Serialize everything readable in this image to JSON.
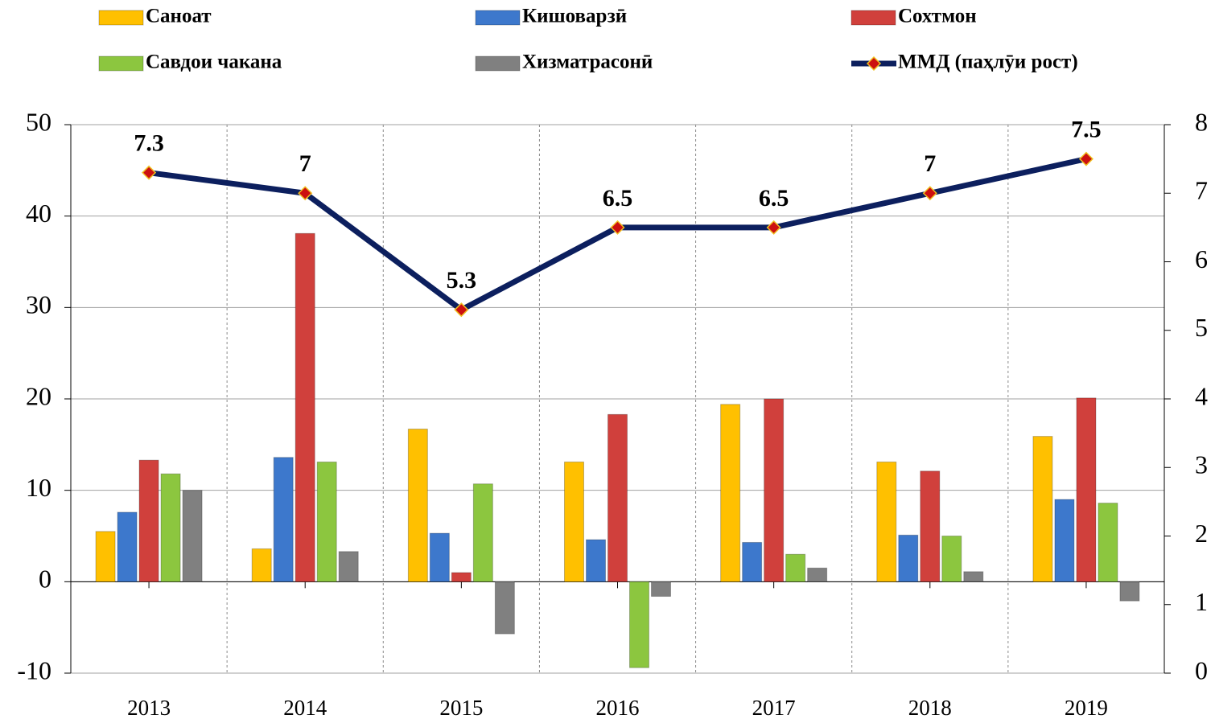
{
  "chart_data": {
    "type": "bar_line",
    "categories": [
      "2013",
      "2014",
      "2015",
      "2016",
      "2017",
      "2018",
      "2019"
    ],
    "series": [
      {
        "name": "Саноат",
        "color": "#ffc000",
        "values": [
          5.5,
          3.6,
          16.7,
          13.1,
          19.4,
          13.1,
          15.9
        ]
      },
      {
        "name": "Кишоварзӣ",
        "color": "#3d78cc",
        "values": [
          7.6,
          13.6,
          5.3,
          4.6,
          4.3,
          5.1,
          9.0
        ]
      },
      {
        "name": "Сохтмон",
        "color": "#d0403c",
        "values": [
          13.3,
          38.1,
          1.0,
          18.3,
          20.0,
          12.1,
          20.1
        ]
      },
      {
        "name": "Савдои чакана",
        "color": "#8cc63f",
        "values": [
          11.8,
          13.1,
          10.7,
          -9.4,
          3.0,
          5.0,
          8.6
        ]
      },
      {
        "name": "Хизматрасонӣ",
        "color": "#808080",
        "values": [
          10.0,
          3.3,
          -5.7,
          -1.6,
          1.5,
          1.1,
          -2.1
        ]
      },
      {
        "name": "ММД (паҳлӯи рост)",
        "color": "#0c1f5e",
        "marker_color": "#cc1010",
        "type": "line",
        "axis": "y2",
        "values": [
          7.3,
          7,
          5.3,
          6.5,
          6.5,
          7,
          7.5
        ]
      }
    ],
    "ylim": [
      -10,
      50
    ],
    "yticks": [
      -10,
      0,
      10,
      20,
      30,
      40,
      50
    ],
    "y2lim": [
      0,
      8
    ],
    "y2ticks": [
      0,
      1,
      2,
      3,
      4,
      5,
      6,
      7,
      8
    ],
    "grid": true,
    "legend": "top"
  }
}
